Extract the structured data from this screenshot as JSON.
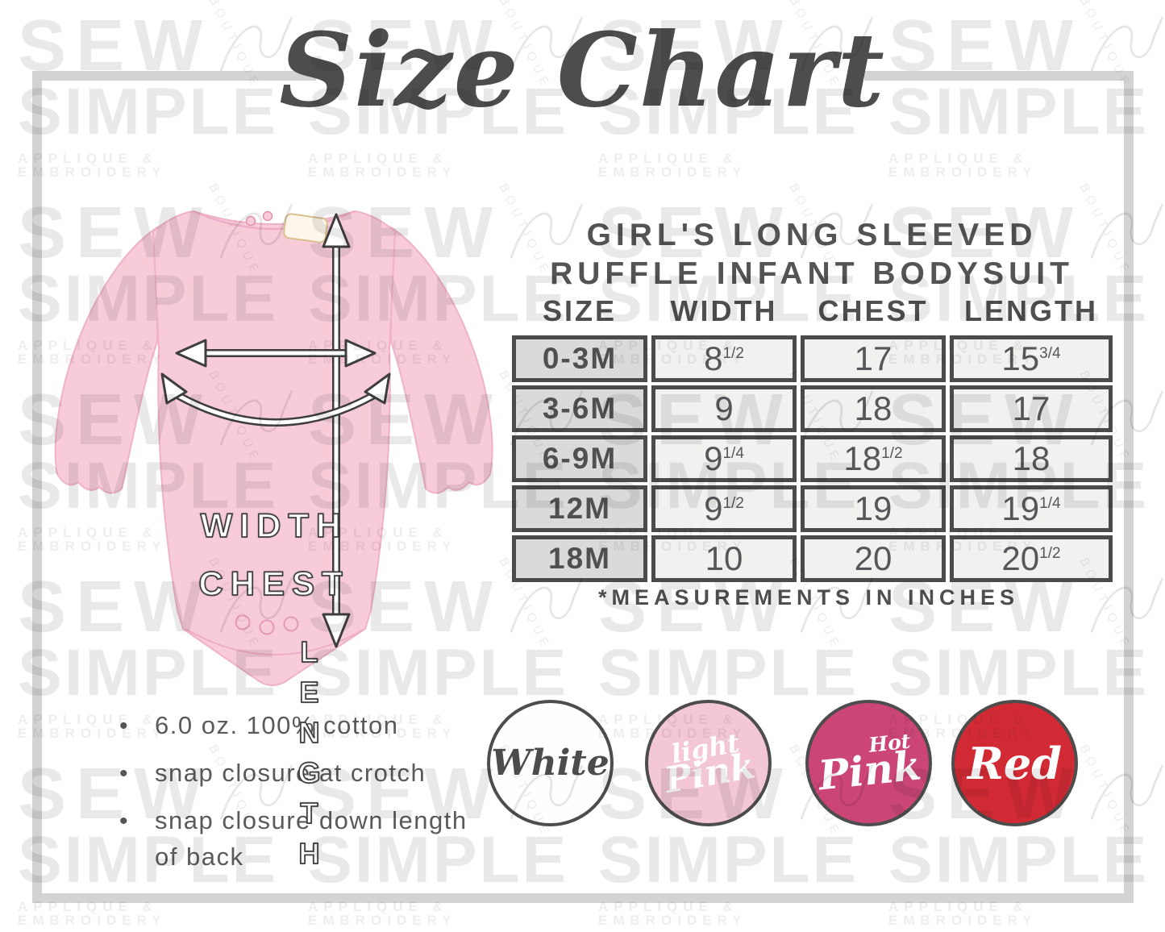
{
  "title": "Size Chart",
  "watermark": {
    "brand_top": "SEW",
    "brand_bottom": "SIMPLE",
    "subtitle": "APPLIQUE & EMBROIDERY",
    "boutique": "BOUTIQUE"
  },
  "diagram": {
    "garment_color": "#f8cbd9",
    "labels": {
      "width": "WIDTH",
      "chest": "CHEST",
      "length": "LENGTH"
    }
  },
  "product": {
    "heading_line1": "GIRL'S LONG SLEEVED",
    "heading_line2": "RUFFLE INFANT BODYSUIT"
  },
  "size_table": {
    "columns": [
      "SIZE",
      "WIDTH",
      "CHEST",
      "LENGTH"
    ],
    "rows": [
      {
        "size": "0-3M",
        "width": "8",
        "width_frac": "1/2",
        "chest": "17",
        "chest_frac": "",
        "length": "15",
        "length_frac": "3/4"
      },
      {
        "size": "3-6M",
        "width": "9",
        "width_frac": "",
        "chest": "18",
        "chest_frac": "",
        "length": "17",
        "length_frac": ""
      },
      {
        "size": "6-9M",
        "width": "9",
        "width_frac": "1/4",
        "chest": "18",
        "chest_frac": "1/2",
        "length": "18",
        "length_frac": ""
      },
      {
        "size": "12M",
        "width": "9",
        "width_frac": "1/2",
        "chest": "19",
        "chest_frac": "",
        "length": "19",
        "length_frac": "1/4"
      },
      {
        "size": "18M",
        "width": "10",
        "width_frac": "",
        "chest": "20",
        "chest_frac": "",
        "length": "20",
        "length_frac": "1/2"
      }
    ],
    "note": "*MEASUREMENTS IN INCHES"
  },
  "features": [
    "6.0 oz. 100% cotton",
    "snap closure at crotch",
    "snap closure down length of back"
  ],
  "colors": [
    {
      "name": "White",
      "label_top": "",
      "label_main": "White",
      "fill": "#fefefe",
      "text_color": "#4c4c4c"
    },
    {
      "name": "Light Pink",
      "label_top": "light",
      "label_main": "Pink",
      "fill": "#f3c7d5",
      "text_color": "#ffffff"
    },
    {
      "name": "Hot Pink",
      "label_top": "Hot",
      "label_main": "Pink",
      "fill": "#cb4577",
      "text_color": "#ffffff"
    },
    {
      "name": "Red",
      "label_top": "",
      "label_main": "Red",
      "fill": "#d22a35",
      "text_color": "#ffffff"
    }
  ],
  "chart_data": {
    "type": "table",
    "title": "Girl's Long Sleeved Ruffle Infant Bodysuit size chart",
    "columns": [
      "SIZE",
      "WIDTH",
      "CHEST",
      "LENGTH"
    ],
    "rows": [
      [
        "0-3M",
        "8 1/2",
        "17",
        "15 3/4"
      ],
      [
        "3-6M",
        "9",
        "18",
        "17"
      ],
      [
        "6-9M",
        "9 1/4",
        "18 1/2",
        "18"
      ],
      [
        "12M",
        "9 1/2",
        "19",
        "19 1/4"
      ],
      [
        "18M",
        "10",
        "20",
        "20 1/2"
      ]
    ],
    "units": "inches"
  }
}
